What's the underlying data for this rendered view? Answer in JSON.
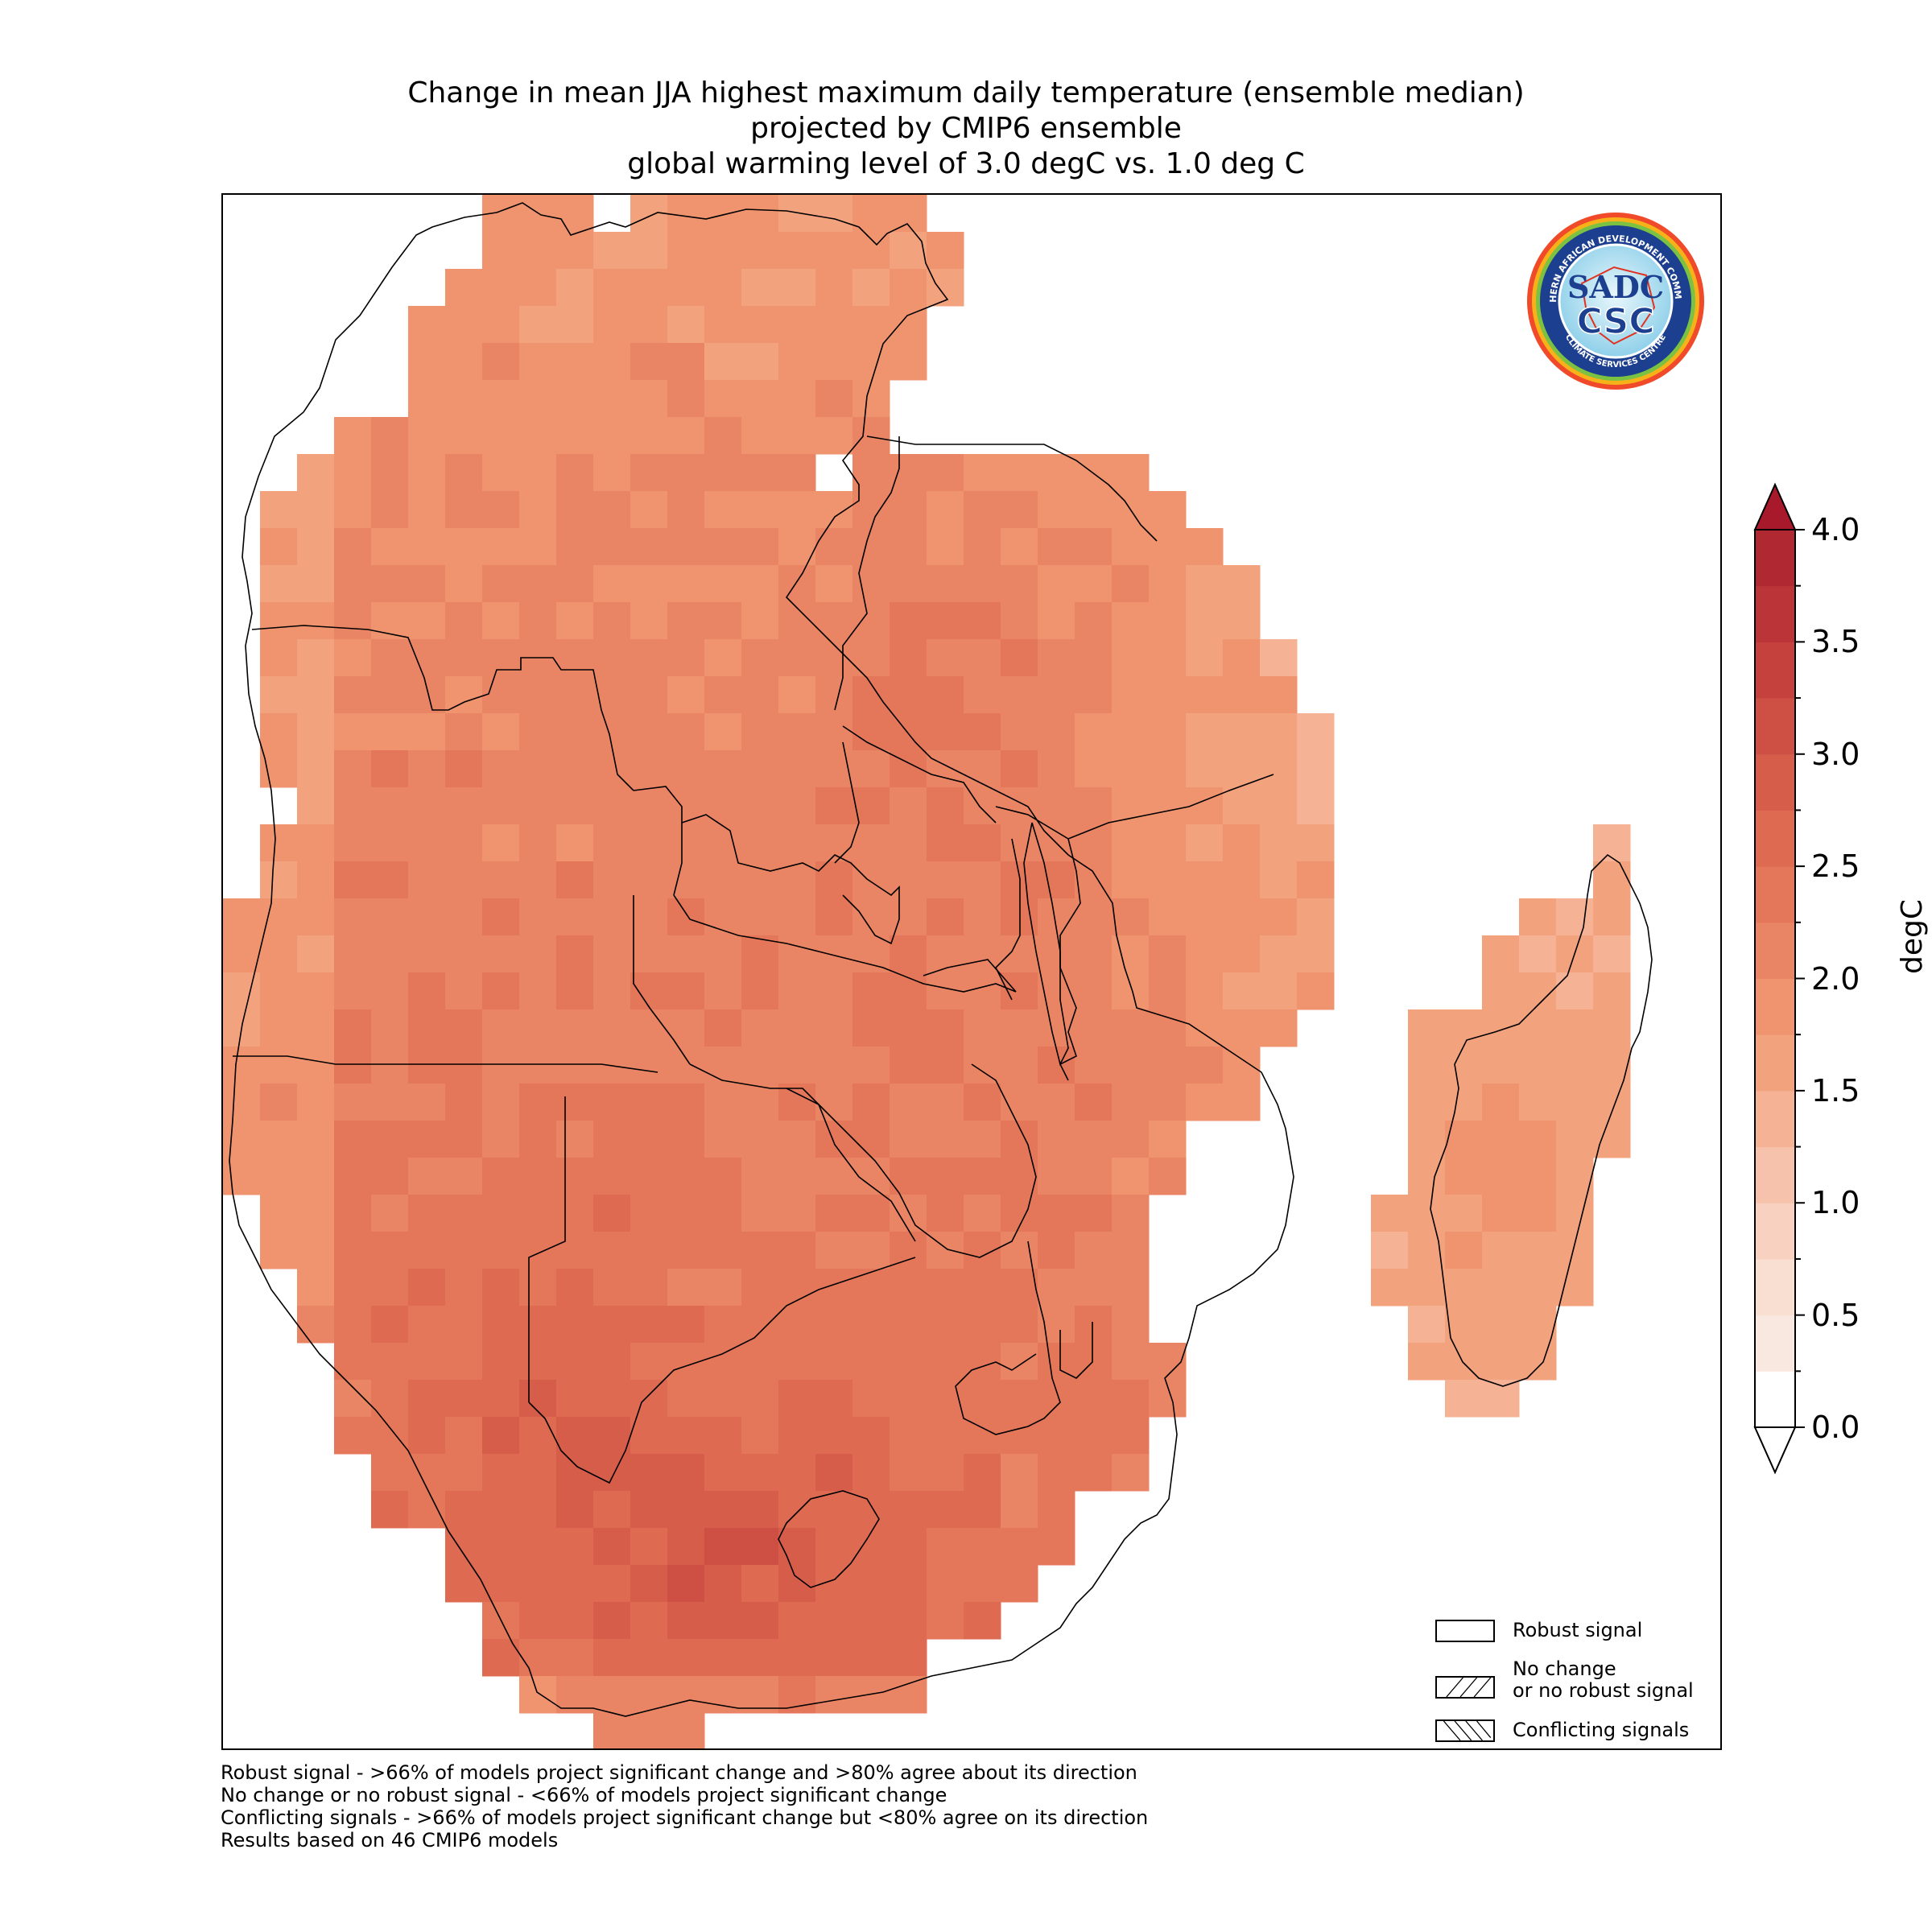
{
  "title": {
    "line1": "Change in mean JJA highest maximum daily temperature (ensemble median)",
    "line2": "projected by CMIP6 ensemble",
    "line3": "global warming level of 3.0 degC vs. 1.0 deg C"
  },
  "logo": {
    "top_text": "SOUTHERN AFRICAN DEVELOPMENT COMMUNITY",
    "bottom_text": "CLIMATE SERVICES CENTRE",
    "mark_line1": "SADC",
    "mark_line2": "CSC"
  },
  "legend": {
    "items": [
      {
        "label_line1": "Robust signal",
        "label_line2": "",
        "hatch": "none"
      },
      {
        "label_line1": "No change",
        "label_line2": "or no robust signal",
        "hatch": "diagonal-up"
      },
      {
        "label_line1": "Conflicting signals",
        "label_line2": "",
        "hatch": "diagonal-down"
      }
    ]
  },
  "colorbar": {
    "unit": "degC",
    "min": 0.0,
    "max": 4.0,
    "step": 0.25,
    "ticks": [
      "0.0",
      "0.5",
      "1.0",
      "1.5",
      "2.0",
      "2.5",
      "3.0",
      "3.5",
      "4.0"
    ],
    "extend": "both",
    "colors": [
      "#ffffff",
      "#f9e8e0",
      "#f9ded2",
      "#f9d1c0",
      "#f7c2ab",
      "#f5b294",
      "#f3a27e",
      "#ef946f",
      "#e98564",
      "#e4775a",
      "#de6a52",
      "#d75d4b",
      "#ce5045",
      "#c5413d",
      "#bb3437",
      "#b02832"
    ],
    "under_color": "#ffffff",
    "over_color": "#a8192c"
  },
  "notes": [
    "Robust signal - >66% of models project significant change and >80% agree about its direction",
    "No change or no robust signal - <66% of models project significant change",
    "Conflicting signals - >66% of models project significant change but <80% agree on its direction",
    "Results based on 46 CMIP6 models"
  ],
  "map_data": {
    "variable": "highest maximum daily temperature change (degC)",
    "signal": "Robust signal",
    "grid": {
      "lon_start": 11.0,
      "lat_start": -4.75,
      "cell_deg": 0.5,
      "rows": [
        [
          0,
          7,
          "................................................................................"
        ],
        [
          0,
          7,
          "...................................................................................."
        ],
        [
          0,
          7,
          ".............55555555555..666666666666666666666.................................................."
        ],
        [
          0,
          7,
          "............555555555555555566666666666666666666666.............................................."
        ],
        [
          0,
          6,
          "...........5555555555555555556666666666666666666666666..........................................."
        ],
        [
          0,
          6,
          "..........66666666666666666666666666666666666666666666666........................................"
        ],
        [
          0,
          6,
          ".........66666666666666666666666666666666666666666666666666666..................................."
        ],
        [
          0,
          5,
          "........666666666666666666666666666666666666666666666666666666666666666666........................"
        ],
        [
          0,
          5,
          ".......66666666666666666666666666666666666666666666666666666666666666666666666666...................."
        ],
        [
          0,
          5,
          "......666666666666666666666666666666666666666666666666666666666666666666666666666666................."
        ],
        [
          0,
          4,
          "....6666666666666666666666666666666666666666666666666666666666666666666666666666666666666............"
        ],
        [
          0,
          4,
          "...66666666666666666666666666666666666666666666666666666666666666666666666666666666666666666666......"
        ],
        [
          0,
          4,
          "..666666666666666666666666666666666666666666666666666666666666666666666666666666666666666666666666..."
        ],
        [
          0,
          3,
          ".666666666666666666666666666666666666666666666666666666666666666666666666666666666666666666666666666.."
        ]
      ]
    }
  }
}
